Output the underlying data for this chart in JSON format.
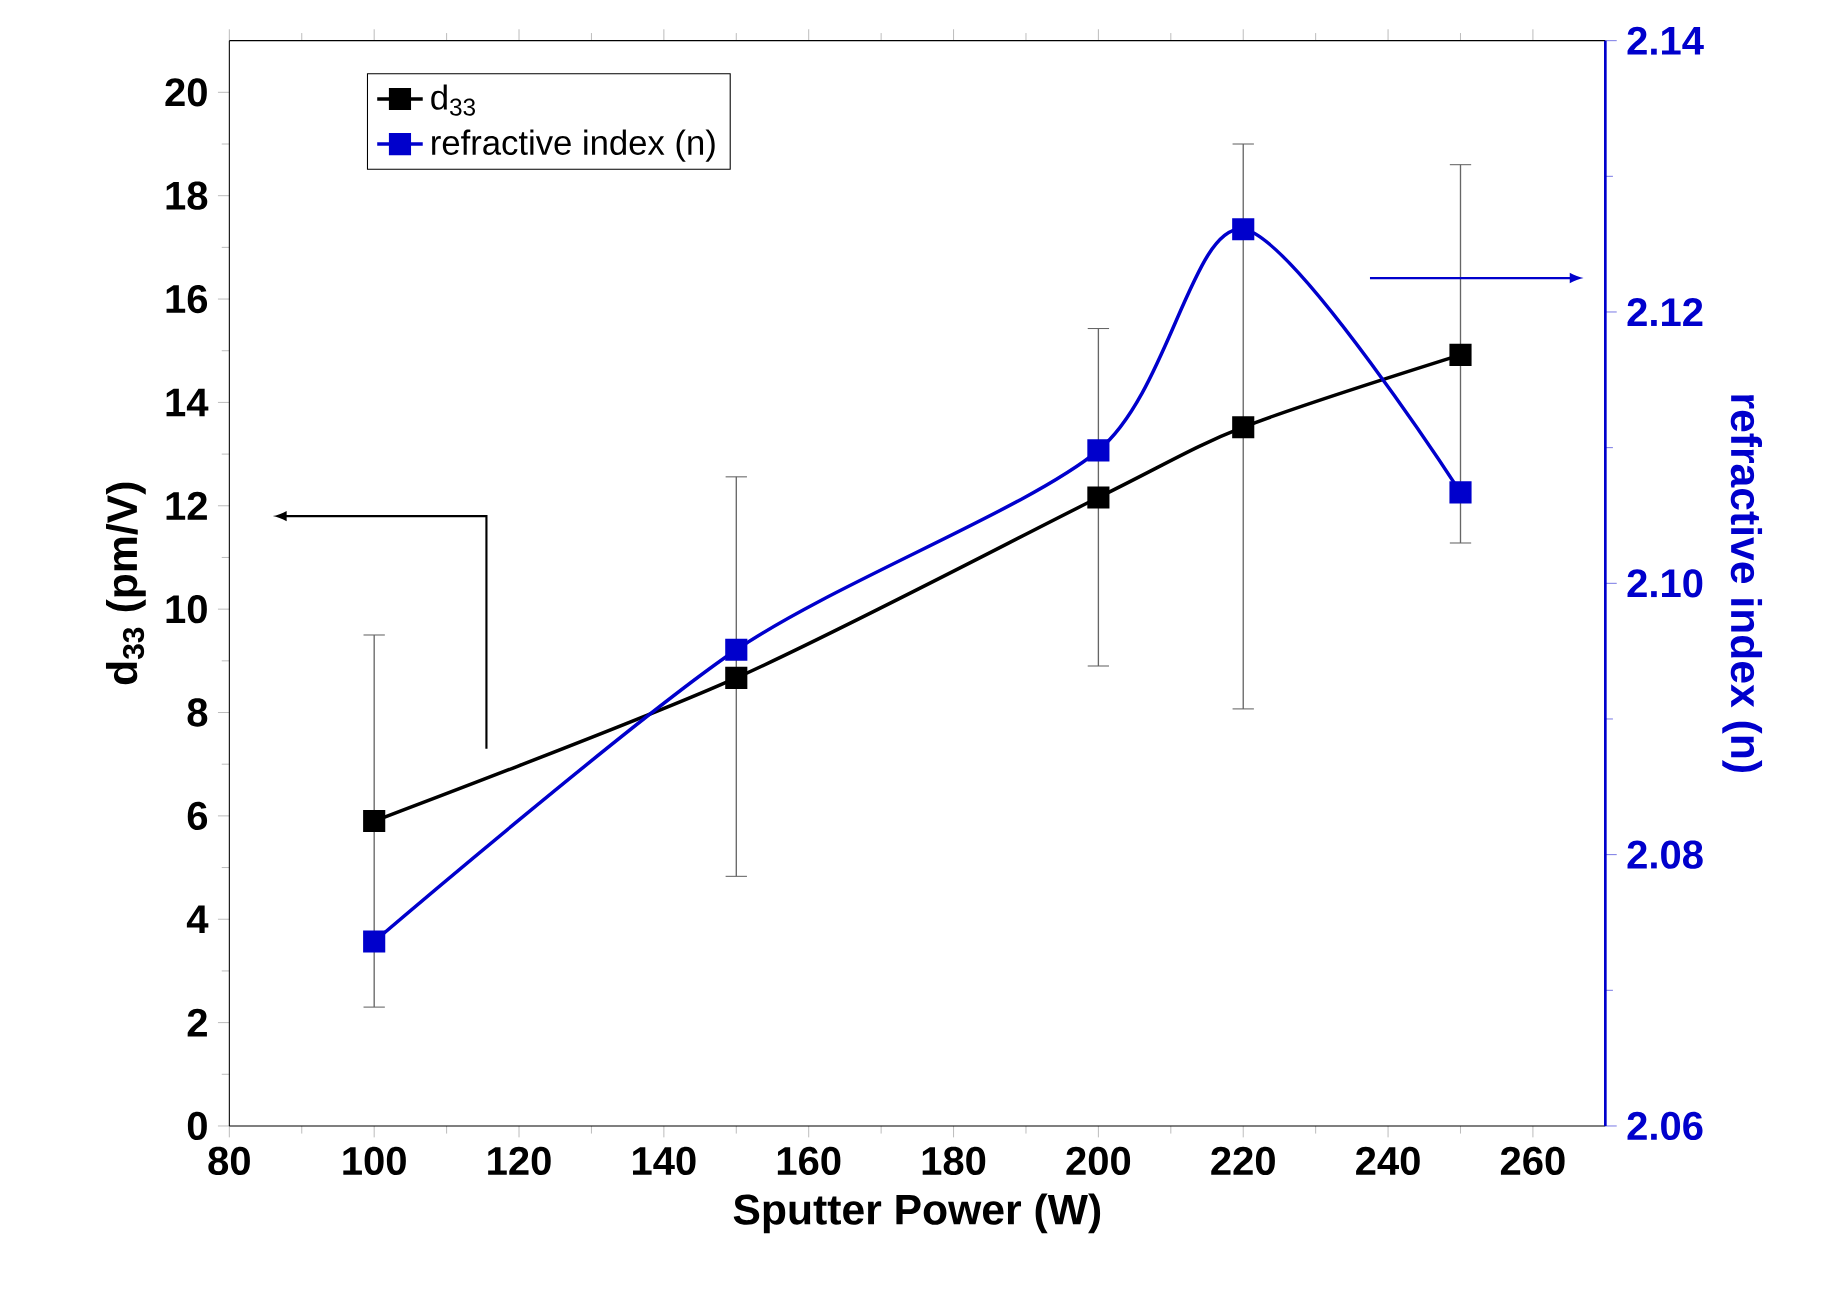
{
  "chart_data": {
    "type": "line",
    "xlabel": "Sputter Power (W)",
    "ylabel": "d$_{33}$ (pm/V)",
    "y2label": "refractive index (n)",
    "x": [
      100,
      150,
      200,
      220,
      250
    ],
    "xlim": [
      80,
      270
    ],
    "xticks": [
      80,
      100,
      120,
      140,
      160,
      180,
      200,
      220,
      240,
      260
    ],
    "ylim": [
      0,
      21
    ],
    "yticks": [
      0,
      2,
      4,
      6,
      8,
      10,
      12,
      14,
      16,
      18,
      20
    ],
    "y2lim": [
      2.06,
      2.14
    ],
    "y2ticks": [
      2.06,
      2.08,
      {
        "value": 2.1,
        "label": "2.10"
      },
      2.12,
      2.14
    ],
    "marker": "square",
    "line_style": "solid",
    "legend": "top left",
    "series": [
      {
        "name": "d$_{33}$",
        "color": "#000000",
        "values": [
          5.9,
          8.67,
          12.16,
          13.52,
          14.92
        ],
        "errors": [
          [
            2.3,
            9.5
          ],
          [
            4.83,
            12.56
          ],
          [
            8.9,
            15.43
          ],
          [
            8.07,
            19.0
          ],
          [
            11.28,
            18.6
          ]
        ]
      },
      {
        "name": "refractive index (n)",
        "color": "#0000cc",
        "axis": "y2",
        "values": [
          2.0736,
          2.0951,
          2.1098,
          2.1261,
          2.1067
        ]
      }
    ]
  }
}
